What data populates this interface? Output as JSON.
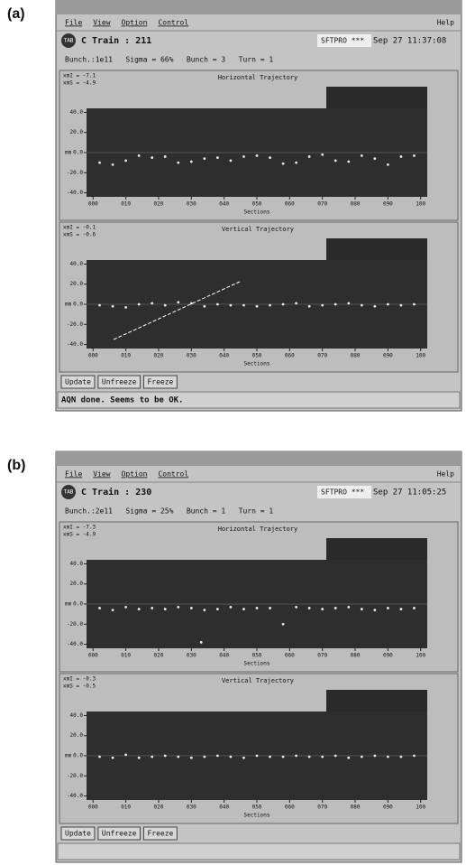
{
  "panels": [
    {
      "label": "(a)",
      "menu": [
        "File",
        "View",
        "Option",
        "Control"
      ],
      "help": "Help",
      "icon": "TAB",
      "train": "C Train : 211",
      "mode": "SFTPRO ***",
      "time": "Sep 27 11:37:08",
      "info": "Bunch.:1e11   Sigma = 66%   Bunch = 3   Turn = 1",
      "plots": [
        {
          "type": "scatter",
          "title": "Horizontal Trajectory",
          "stats": [
            "xmI = -7.1",
            "xmS = -4.9"
          ],
          "x_label": "Sections",
          "y_label": "mm",
          "xlim": [
            -2,
            102
          ],
          "ylim": [
            -44,
            44
          ],
          "yticks": [
            {
              "value": 40,
              "label": "40.0"
            },
            {
              "value": 20,
              "label": "20.0"
            },
            {
              "value": 0,
              "label": "0.0"
            },
            {
              "value": -20,
              "label": "-20.0"
            },
            {
              "value": -40,
              "label": "-40.0"
            }
          ],
          "xticks": [
            {
              "value": 0,
              "label": "000"
            },
            {
              "value": 10,
              "label": "010"
            },
            {
              "value": 20,
              "label": "020"
            },
            {
              "value": 30,
              "label": "030"
            },
            {
              "value": 40,
              "label": "040"
            },
            {
              "value": 50,
              "label": "050"
            },
            {
              "value": 60,
              "label": "060"
            },
            {
              "value": 70,
              "label": "070"
            },
            {
              "value": 80,
              "label": "080"
            },
            {
              "value": 90,
              "label": "090"
            },
            {
              "value": 100,
              "label": "100"
            }
          ],
          "x": [
            2,
            6,
            10,
            14,
            18,
            22,
            26,
            30,
            34,
            38,
            42,
            46,
            50,
            54,
            58,
            62,
            66,
            70,
            74,
            78,
            82,
            86,
            90,
            94,
            98
          ],
          "values": [
            -10,
            -12,
            -8,
            -3,
            -5,
            -4,
            -10,
            -9,
            -6,
            -5,
            -8,
            -4,
            -3,
            -5,
            -11,
            -10,
            -4,
            -2,
            -8,
            -9,
            -3,
            -6,
            -12,
            -4,
            -3
          ]
        },
        {
          "type": "scatter",
          "title": "Vertical Trajectory",
          "stats": [
            "xmI = -0.1",
            "xmS = -0.6"
          ],
          "x_label": "Sections",
          "y_label": "mm",
          "xlim": [
            -2,
            102
          ],
          "ylim": [
            -44,
            44
          ],
          "yticks": [
            {
              "value": 40,
              "label": "40.0"
            },
            {
              "value": 20,
              "label": "20.0"
            },
            {
              "value": 0,
              "label": "0.0"
            },
            {
              "value": -20,
              "label": "-20.0"
            },
            {
              "value": -40,
              "label": "-40.0"
            }
          ],
          "xticks": [
            {
              "value": 0,
              "label": "000"
            },
            {
              "value": 10,
              "label": "010"
            },
            {
              "value": 20,
              "label": "020"
            },
            {
              "value": 30,
              "label": "030"
            },
            {
              "value": 40,
              "label": "040"
            },
            {
              "value": 50,
              "label": "050"
            },
            {
              "value": 60,
              "label": "060"
            },
            {
              "value": 70,
              "label": "070"
            },
            {
              "value": 80,
              "label": "080"
            },
            {
              "value": 90,
              "label": "090"
            },
            {
              "value": 100,
              "label": "100"
            }
          ],
          "x": [
            2,
            6,
            10,
            14,
            18,
            22,
            26,
            30,
            34,
            38,
            42,
            46,
            50,
            54,
            58,
            62,
            66,
            70,
            74,
            78,
            82,
            86,
            90,
            94,
            98
          ],
          "values": [
            -1,
            -2,
            -3,
            0,
            1,
            -1,
            2,
            1,
            -2,
            0,
            -1,
            -1,
            -2,
            -1,
            0,
            1,
            -2,
            -1,
            0,
            1,
            -1,
            -2,
            0,
            -1,
            0
          ]
        }
      ],
      "buttons": [
        "Update",
        "Unfreeze",
        "Freeze"
      ],
      "status": "AQN done. Seems to be OK."
    },
    {
      "label": "(b)",
      "menu": [
        "File",
        "View",
        "Option",
        "Control"
      ],
      "help": "Help",
      "icon": "TAB",
      "train": "C Train : 230",
      "mode": "SFTPRO ***",
      "time": "Sep 27 11:05:25",
      "info": "Bunch.:2e11   Sigma = 25%   Bunch = 1   Turn = 1",
      "plots": [
        {
          "type": "scatter",
          "title": "Horizontal Trajectory",
          "stats": [
            "xmI = -7.3",
            "xmS = -4.9"
          ],
          "x_label": "Sections",
          "y_label": "mm",
          "xlim": [
            -2,
            102
          ],
          "ylim": [
            -44,
            44
          ],
          "yticks": [
            {
              "value": 40,
              "label": "40.0"
            },
            {
              "value": 20,
              "label": "20.0"
            },
            {
              "value": 0,
              "label": "0.0"
            },
            {
              "value": -20,
              "label": "-20.0"
            },
            {
              "value": -40,
              "label": "-40.0"
            }
          ],
          "xticks": [
            {
              "value": 0,
              "label": "000"
            },
            {
              "value": 10,
              "label": "010"
            },
            {
              "value": 20,
              "label": "020"
            },
            {
              "value": 30,
              "label": "030"
            },
            {
              "value": 40,
              "label": "040"
            },
            {
              "value": 50,
              "label": "050"
            },
            {
              "value": 60,
              "label": "060"
            },
            {
              "value": 70,
              "label": "070"
            },
            {
              "value": 80,
              "label": "080"
            },
            {
              "value": 90,
              "label": "090"
            },
            {
              "value": 100,
              "label": "100"
            }
          ],
          "x": [
            2,
            6,
            10,
            14,
            18,
            22,
            26,
            30,
            33,
            34,
            38,
            42,
            46,
            50,
            54,
            58,
            62,
            66,
            70,
            74,
            78,
            82,
            86,
            90,
            94,
            98
          ],
          "values": [
            -4,
            -6,
            -3,
            -5,
            -4,
            -5,
            -3,
            -4,
            -38,
            -6,
            -5,
            -3,
            -5,
            -4,
            -4,
            -20,
            -3,
            -4,
            -5,
            -4,
            -3,
            -5,
            -6,
            -4,
            -5,
            -4
          ]
        },
        {
          "type": "scatter",
          "title": "Vertical Trajectory",
          "stats": [
            "xmI = -0.3",
            "xmS = -0.5"
          ],
          "x_label": "Sections",
          "y_label": "mm",
          "xlim": [
            -2,
            102
          ],
          "ylim": [
            -44,
            44
          ],
          "yticks": [
            {
              "value": 40,
              "label": "40.0"
            },
            {
              "value": 20,
              "label": "20.0"
            },
            {
              "value": 0,
              "label": "0.0"
            },
            {
              "value": -20,
              "label": "-20.0"
            },
            {
              "value": -40,
              "label": "-40.0"
            }
          ],
          "xticks": [
            {
              "value": 0,
              "label": "000"
            },
            {
              "value": 10,
              "label": "010"
            },
            {
              "value": 20,
              "label": "020"
            },
            {
              "value": 30,
              "label": "030"
            },
            {
              "value": 40,
              "label": "040"
            },
            {
              "value": 50,
              "label": "050"
            },
            {
              "value": 60,
              "label": "060"
            },
            {
              "value": 70,
              "label": "070"
            },
            {
              "value": 80,
              "label": "080"
            },
            {
              "value": 90,
              "label": "090"
            },
            {
              "value": 100,
              "label": "100"
            }
          ],
          "x": [
            2,
            6,
            10,
            14,
            18,
            22,
            26,
            30,
            34,
            38,
            42,
            46,
            50,
            54,
            58,
            62,
            66,
            70,
            74,
            78,
            82,
            86,
            90,
            94,
            98
          ],
          "values": [
            -1,
            -2,
            1,
            -2,
            -1,
            0,
            -1,
            -2,
            -1,
            0,
            -1,
            -2,
            0,
            -1,
            -1,
            0,
            -1,
            -1,
            0,
            -2,
            -1,
            0,
            -1,
            -1,
            0
          ]
        }
      ],
      "buttons": [
        "Update",
        "Unfreeze",
        "Freeze"
      ],
      "status": ""
    }
  ]
}
